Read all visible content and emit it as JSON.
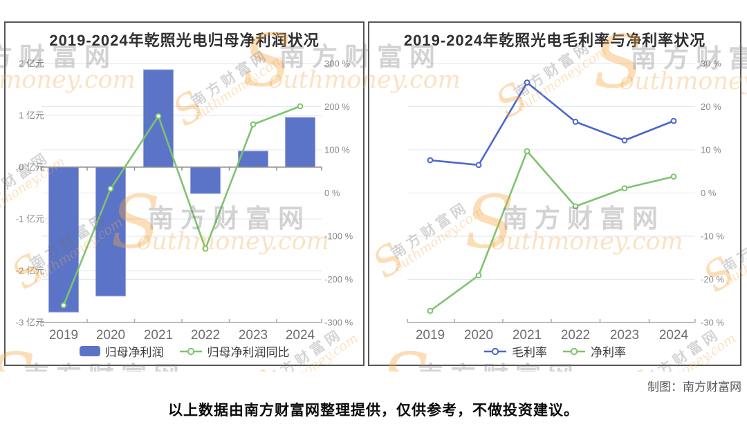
{
  "page": {
    "disclaimer": "以上数据由南方财富网整理提供，仅供参考，不做投资建议。",
    "credit": "制图：南方财富网"
  },
  "watermark": {
    "s": "S",
    "cjk": "南方财富网",
    "latin": "outhmoney.com"
  },
  "colors": {
    "bar_blue": "#5b74c8",
    "bar_blue_edge": "#98a6de",
    "line_blue": "#4a66cb",
    "line_green": "#7dc46d",
    "grid": "#e0e5f0",
    "axis": "#a8a8a8",
    "zero_axis": "#8f8f8f",
    "tick_label": "#898989",
    "category_label": "#6e6e6e"
  },
  "chart_data": [
    {
      "type": "bar",
      "title": "2019-2024年乾照光电归母净利润状况",
      "categories": [
        "2019",
        "2020",
        "2021",
        "2022",
        "2023",
        "2024"
      ],
      "series": [
        {
          "name": "归母净利润",
          "kind": "bar",
          "axis": "left",
          "unit": "亿元",
          "color": "#5b74c8",
          "values": [
            -2.8,
            -2.49,
            1.88,
            -0.51,
            0.31,
            0.96
          ]
        },
        {
          "name": "归母净利润同比",
          "kind": "line",
          "axis": "right",
          "unit": "%",
          "color": "#7dc46d",
          "values": [
            -260,
            10,
            178,
            -129,
            159,
            201
          ]
        }
      ],
      "left_axis": {
        "unit": "亿元",
        "min": -3,
        "max": 2,
        "step": 1,
        "tick_labels": [
          "2 亿元",
          "1 亿元",
          "0 亿元",
          "-1 亿元",
          "-2 亿元",
          "-3 亿元"
        ]
      },
      "right_axis": {
        "unit": "%",
        "min": -300,
        "max": 300,
        "step": 100,
        "tick_labels": [
          "300 %",
          "200 %",
          "100 %",
          "0 %",
          "-100 %",
          "-200 %",
          "-300 %"
        ]
      },
      "legend": [
        "归母净利润",
        "归母净利润同比"
      ],
      "legend_position": "bottom",
      "grid_on": true
    },
    {
      "type": "line",
      "title": "2019-2024年乾照光电毛利率与净利率状况",
      "categories": [
        "2019",
        "2020",
        "2021",
        "2022",
        "2023",
        "2024"
      ],
      "series": [
        {
          "name": "毛利率",
          "kind": "line",
          "axis": "right",
          "unit": "%",
          "color": "#4a66cb",
          "values": [
            7.6,
            6.5,
            25.6,
            16.5,
            12.2,
            16.7
          ]
        },
        {
          "name": "净利率",
          "kind": "line",
          "axis": "right",
          "unit": "%",
          "color": "#7dc46d",
          "values": [
            -27.3,
            -19.1,
            9.7,
            -3.1,
            1.1,
            3.8
          ]
        }
      ],
      "right_axis": {
        "unit": "%",
        "min": -30,
        "max": 30,
        "step": 10,
        "tick_labels": [
          "30 %",
          "20 %",
          "10 %",
          "0 %",
          "-10 %",
          "-20 %",
          "-30 %"
        ]
      },
      "legend": [
        "毛利率",
        "净利率"
      ],
      "legend_position": "bottom",
      "grid_on": true
    }
  ]
}
